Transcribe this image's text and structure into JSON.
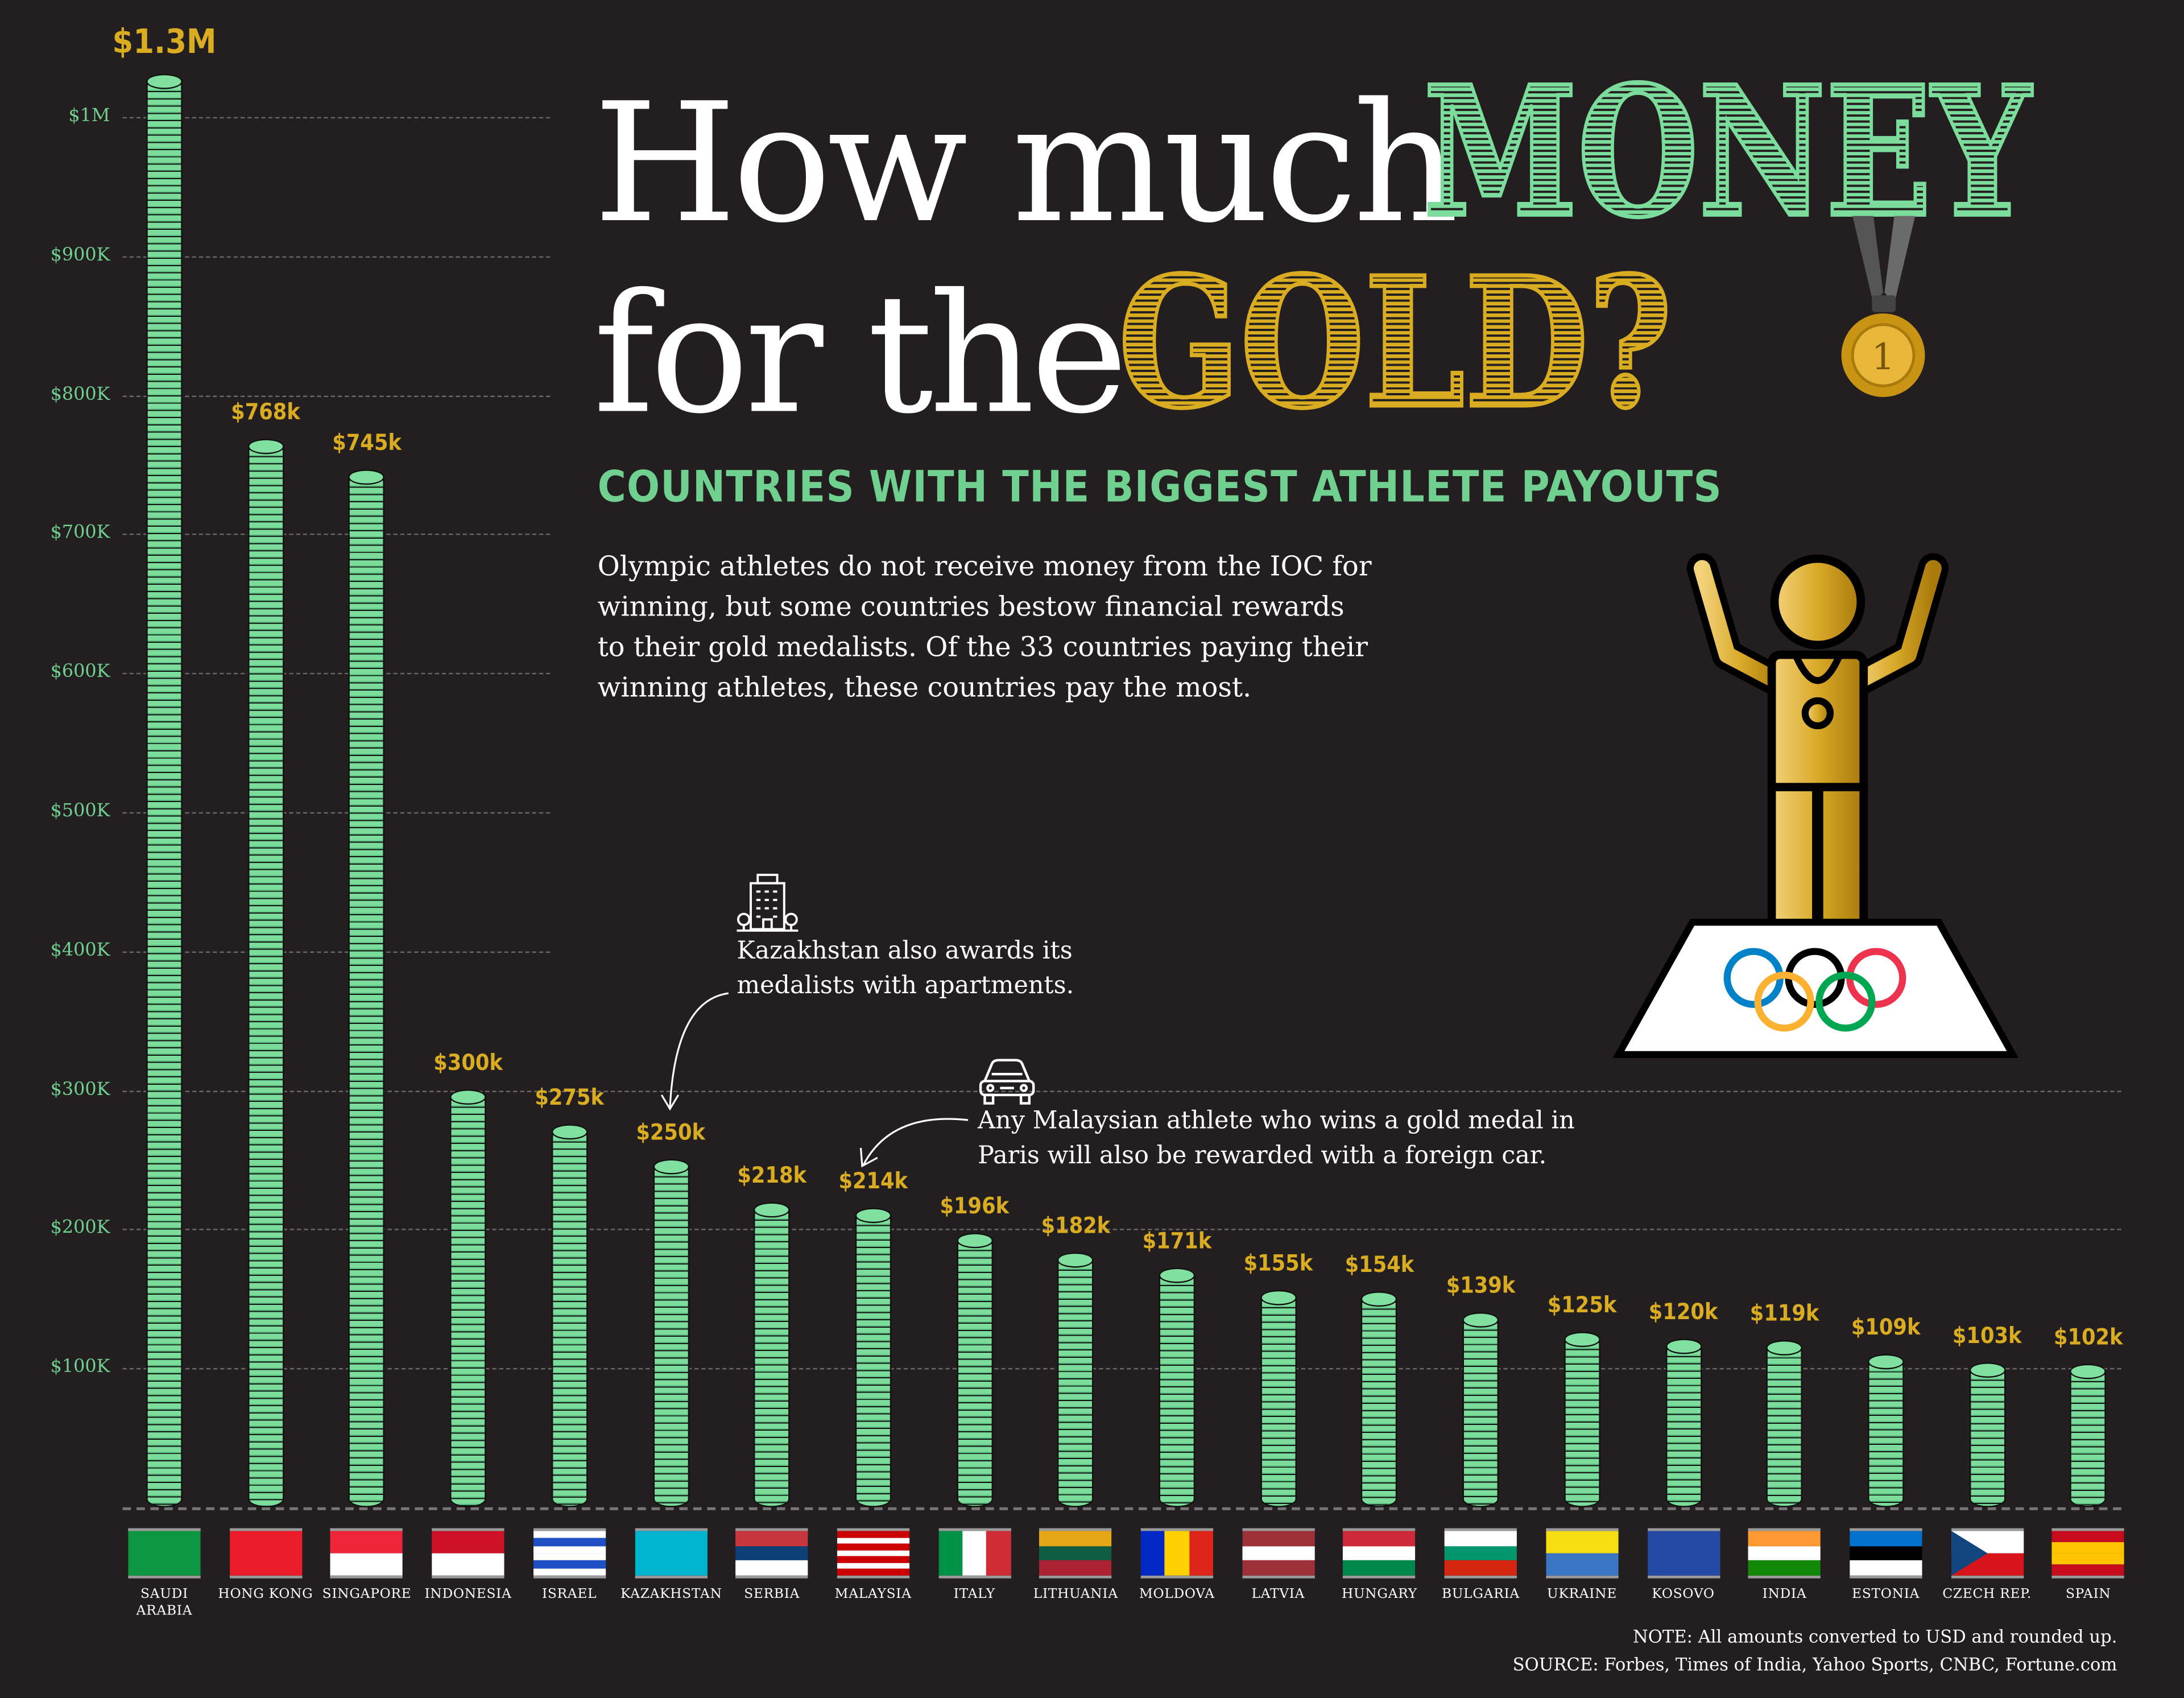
{
  "title": {
    "line1_plain": "How much",
    "line1_highlight": "MONEY",
    "line2_plain": "for the",
    "line2_highlight": "GOLD?"
  },
  "subtitle": "COUNTRIES WITH THE BIGGEST ATHLETE PAYOUTS",
  "intro": [
    "Olympic athletes do not receive money from the IOC for",
    "winning, but some countries bestow financial rewards",
    "to their gold medalists. Of the 33 countries paying their",
    "winning athletes, these countries pay the most."
  ],
  "medal_number": "1",
  "annotations": {
    "kazakhstan": [
      "Kazakhstan also awards its",
      "medalists with apartments."
    ],
    "malaysia": [
      "Any Malaysian athlete who wins a gold medal in",
      "Paris will also be rewarded with a foreign car."
    ]
  },
  "footer": {
    "note": "NOTE: All amounts converted to USD and rounded up.",
    "source": "SOURCE: Forbes, Times of India, Yahoo Sports, CNBC, Fortune.com"
  },
  "colors": {
    "background": "#231f20",
    "green": "#7bdc9b",
    "gold": "#d9ac22",
    "white": "#ffffff"
  },
  "icons": [
    "medal-icon",
    "building-icon",
    "car-icon",
    "athlete-podium-icon",
    "olympic-rings-icon"
  ],
  "chart_data": {
    "type": "bar",
    "style": "coin stacks",
    "categories": [
      "SAUDI ARABIA",
      "HONG KONG",
      "SINGAPORE",
      "INDONESIA",
      "ISRAEL",
      "KAZAKHSTAN",
      "SERBIA",
      "MALAYSIA",
      "ITALY",
      "LITHUANIA",
      "MOLDOVA",
      "LATVIA",
      "HUNGARY",
      "BULGARIA",
      "UKRAINE",
      "KOSOVO",
      "INDIA",
      "ESTONIA",
      "CZECH REP.",
      "SPAIN"
    ],
    "values": [
      1300000,
      768000,
      745000,
      300000,
      275000,
      250000,
      218000,
      214000,
      196000,
      182000,
      171000,
      155000,
      154000,
      139000,
      125000,
      120000,
      119000,
      109000,
      103000,
      102000
    ],
    "value_labels": [
      "$1.3M",
      "$768k",
      "$745k",
      "$300k",
      "$275k",
      "$250k",
      "$218k",
      "$214k",
      "$196k",
      "$182k",
      "$171k",
      "$155k",
      "$154k",
      "$139k",
      "$125k",
      "$120k",
      "$119k",
      "$109k",
      "$103k",
      "$102k"
    ],
    "ylim": [
      0,
      1030000
    ],
    "yticks": [
      100000,
      200000,
      300000,
      400000,
      500000,
      600000,
      700000,
      800000,
      900000,
      1000000
    ],
    "ytick_labels": [
      "$100K",
      "$200K",
      "$300K",
      "$400K",
      "$500K",
      "$600K",
      "$700K",
      "$800K",
      "$900K",
      "$1M"
    ],
    "grid": true,
    "title": "",
    "xlabel": "",
    "ylabel": ""
  },
  "flags": [
    {
      "dir": "h",
      "stripes": [
        "#0f9640"
      ]
    },
    {
      "dir": "h",
      "stripes": [
        "#ec1c2b"
      ]
    },
    {
      "dir": "h",
      "stripes": [
        "#ee2536",
        "#ffffff"
      ]
    },
    {
      "dir": "h",
      "stripes": [
        "#ce1126",
        "#ffffff"
      ]
    },
    {
      "dir": "h",
      "stripes": [
        "#ffffff",
        "#1e4fc4",
        "#ffffff",
        "#ffffff",
        "#1e4fc4",
        "#ffffff"
      ]
    },
    {
      "dir": "h",
      "stripes": [
        "#00b3cf"
      ]
    },
    {
      "dir": "h",
      "stripes": [
        "#c6363c",
        "#0c4076",
        "#ffffff"
      ]
    },
    {
      "dir": "h",
      "stripes": [
        "#cc0001",
        "#ffffff",
        "#cc0001",
        "#ffffff",
        "#cc0001",
        "#ffffff",
        "#cc0001"
      ]
    },
    {
      "dir": "v",
      "stripes": [
        "#009246",
        "#ffffff",
        "#ce2b37"
      ]
    },
    {
      "dir": "h",
      "stripes": [
        "#e6a716",
        "#0f5e44",
        "#ad2233"
      ]
    },
    {
      "dir": "v",
      "stripes": [
        "#0029c6",
        "#ffd100",
        "#e0231a"
      ]
    },
    {
      "dir": "h",
      "stripes": [
        "#9e3039",
        "#ffffff",
        "#9e3039"
      ]
    },
    {
      "dir": "h",
      "stripes": [
        "#ce2939",
        "#ffffff",
        "#00874a"
      ]
    },
    {
      "dir": "h",
      "stripes": [
        "#ffffff",
        "#00966e",
        "#d62612"
      ]
    },
    {
      "dir": "h",
      "stripes": [
        "#f7dd14",
        "#3a76c4"
      ]
    },
    {
      "dir": "h",
      "stripes": [
        "#244aa5"
      ]
    },
    {
      "dir": "h",
      "stripes": [
        "#ff9933",
        "#ffffff",
        "#138808"
      ]
    },
    {
      "dir": "h",
      "stripes": [
        "#0072ce",
        "#000000",
        "#ffffff"
      ]
    },
    {
      "dir": "h",
      "stripes": [
        "#ffffff",
        "#d7141a"
      ],
      "triangle": "#11457e"
    },
    {
      "dir": "h",
      "stripes": [
        "#c60b1e",
        "#ffc400",
        "#ffc400",
        "#c60b1e"
      ]
    }
  ]
}
